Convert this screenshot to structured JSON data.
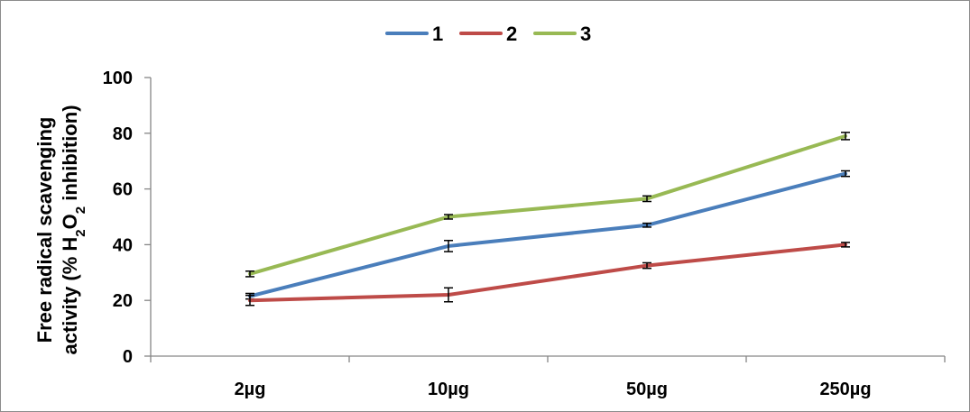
{
  "chart_data": {
    "type": "line",
    "title": "",
    "xlabel": "",
    "ylabel_line1": "Free radical scavenging",
    "ylabel_line2": {
      "prefix": "activity (% H",
      "sub1": "2",
      "mid": "O",
      "sub2": "2",
      "suffix": " inhibition)"
    },
    "categories": [
      "2µg",
      "10µg",
      "50µg",
      "250µg"
    ],
    "ylim": [
      0,
      100
    ],
    "yticks": [
      0,
      20,
      40,
      60,
      80,
      100
    ],
    "grid": false,
    "legend_position": "top-center",
    "series": [
      {
        "name": "1",
        "color": "#4a7ebb",
        "values": [
          21.5,
          39.5,
          47.0,
          65.5
        ],
        "errors": [
          1.0,
          2.0,
          0.7,
          1.0
        ]
      },
      {
        "name": "2",
        "color": "#be4b48",
        "values": [
          20.0,
          22.0,
          32.5,
          40.0
        ],
        "errors": [
          1.8,
          2.5,
          1.0,
          0.8
        ]
      },
      {
        "name": "3",
        "color": "#98b954",
        "values": [
          29.5,
          50.0,
          56.5,
          79.0
        ],
        "errors": [
          1.0,
          0.8,
          1.0,
          1.3
        ]
      }
    ]
  }
}
